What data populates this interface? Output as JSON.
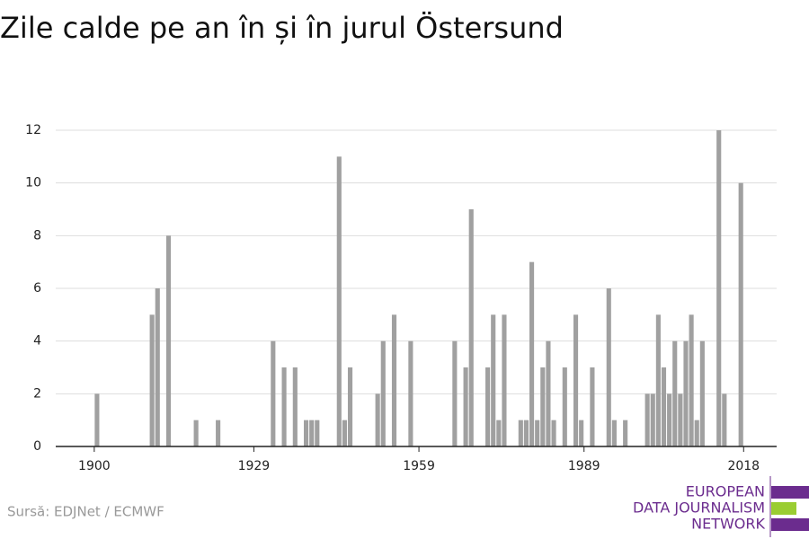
{
  "chart_data": {
    "type": "bar",
    "title": "Zile calde pe an în și în jurul Östersund",
    "source": "Sursă: EDJNet / ECMWF",
    "logo": [
      "EUROPEAN",
      "DATA JOURNALISM",
      "NETWORK"
    ],
    "color": "#a0a0a0",
    "x": [
      1900,
      1910,
      1911,
      1913,
      1918,
      1922,
      1932,
      1934,
      1936,
      1938,
      1939,
      1940,
      1944,
      1945,
      1946,
      1951,
      1952,
      1954,
      1957,
      1965,
      1967,
      1968,
      1971,
      1972,
      1973,
      1974,
      1977,
      1978,
      1979,
      1980,
      1981,
      1982,
      1983,
      1985,
      1987,
      1988,
      1990,
      1993,
      1994,
      1996,
      2000,
      2001,
      2002,
      2003,
      2004,
      2005,
      2006,
      2007,
      2008,
      2009,
      2010,
      2013,
      2014,
      2017
    ],
    "values": [
      2,
      5,
      6,
      8,
      1,
      1,
      4,
      3,
      3,
      1,
      1,
      1,
      11,
      1,
      3,
      2,
      4,
      5,
      4,
      4,
      3,
      9,
      3,
      5,
      1,
      5,
      1,
      1,
      7,
      1,
      3,
      4,
      1,
      3,
      5,
      1,
      3,
      6,
      1,
      1,
      2,
      2,
      5,
      3,
      2,
      4,
      2,
      4,
      5,
      1,
      4,
      12,
      2,
      10
    ],
    "xlim": [
      1893,
      2024
    ],
    "xticks": [
      1900,
      1929,
      1959,
      1989,
      2018
    ],
    "ylim": [
      0,
      12
    ],
    "yticks": [
      0,
      2,
      4,
      6,
      8,
      10,
      12
    ],
    "grid": true
  }
}
